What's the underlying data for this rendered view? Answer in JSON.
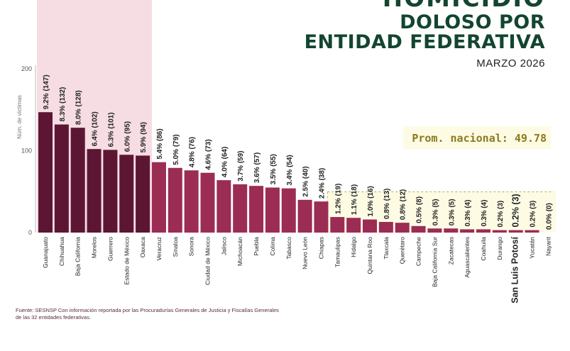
{
  "header": {
    "title_top": "HOMICIDIO",
    "title_line1": "DOLOSO POR",
    "title_line2": "ENTIDAD FEDERATIVA",
    "subtitle": "MARZO 2026"
  },
  "footer": {
    "source": "Fuente: SESNSP Con información reportada por las  Procuradurías Generales de Justicia y  Fiscalías Generales de las 32 entidades federativas."
  },
  "chart_data": {
    "type": "bar",
    "ylabel": "Núm. de víctimas",
    "xlabel": "",
    "ylim": [
      0,
      200
    ],
    "yticks": [
      0,
      100,
      200
    ],
    "categories": [
      "Guanajuato",
      "Chihuahua",
      "Baja California",
      "Morelos",
      "Guerrero",
      "Estado de México",
      "Oaxaca",
      "Veracruz",
      "Sinaloa",
      "Sonora",
      "Ciudad de México",
      "Jalisco",
      "Michoacán",
      "Puebla",
      "Colima",
      "Tabasco",
      "Nuevo León",
      "Chiapas",
      "Tamaulipas",
      "Hidalgo",
      "Quintana Roo",
      "Tlaxcala",
      "Querétaro",
      "Campeche",
      "Baja California Sur",
      "Zacatecas",
      "Aguascalientes",
      "Coahuila",
      "Durango",
      "San Luis Potosí",
      "Yucatán",
      "Nayarit"
    ],
    "values": [
      147,
      132,
      128,
      102,
      101,
      95,
      94,
      86,
      79,
      76,
      73,
      64,
      59,
      57,
      55,
      54,
      40,
      38,
      19,
      18,
      16,
      13,
      12,
      8,
      5,
      5,
      4,
      4,
      3,
      3,
      3,
      0
    ],
    "data_labels": [
      "9.2% (147)",
      "8.3% (132)",
      "8.0% (128)",
      "6.4% (102)",
      "6.3% (101)",
      "6.0% (95)",
      "5.9% (94)",
      "5.4% (86)",
      "5.0% (79)",
      "4.8% (76)",
      "4.6% (73)",
      "4.0% (64)",
      "3.7% (59)",
      "3.6% (57)",
      "3.5% (55)",
      "3.4% (54)",
      "2.5% (40)",
      "2.4% (38)",
      "1.2% (19)",
      "1.1% (18)",
      "1.0% (16)",
      "0.8% (13)",
      "0.8% (12)",
      "0.5% (8)",
      "0.3% (5)",
      "0.3% (5)",
      "0.3% (4)",
      "0.3% (4)",
      "0.2% (3)",
      "0.2% (3)",
      "0.2% (3)",
      "0.0% (0)"
    ],
    "highlight_category": "San Luis Potosí",
    "average": {
      "label": "Prom. nacional: 49.78",
      "value": 49.78
    },
    "colors": {
      "top_group": "#5c1633",
      "rest": "#9b2d55",
      "top_band": "#f6dde3",
      "average_band": "#fdfbe4",
      "average_line": "#c9bb5f",
      "average_label": "#8a7b1e"
    },
    "top_group_count": 7,
    "grid": false
  }
}
